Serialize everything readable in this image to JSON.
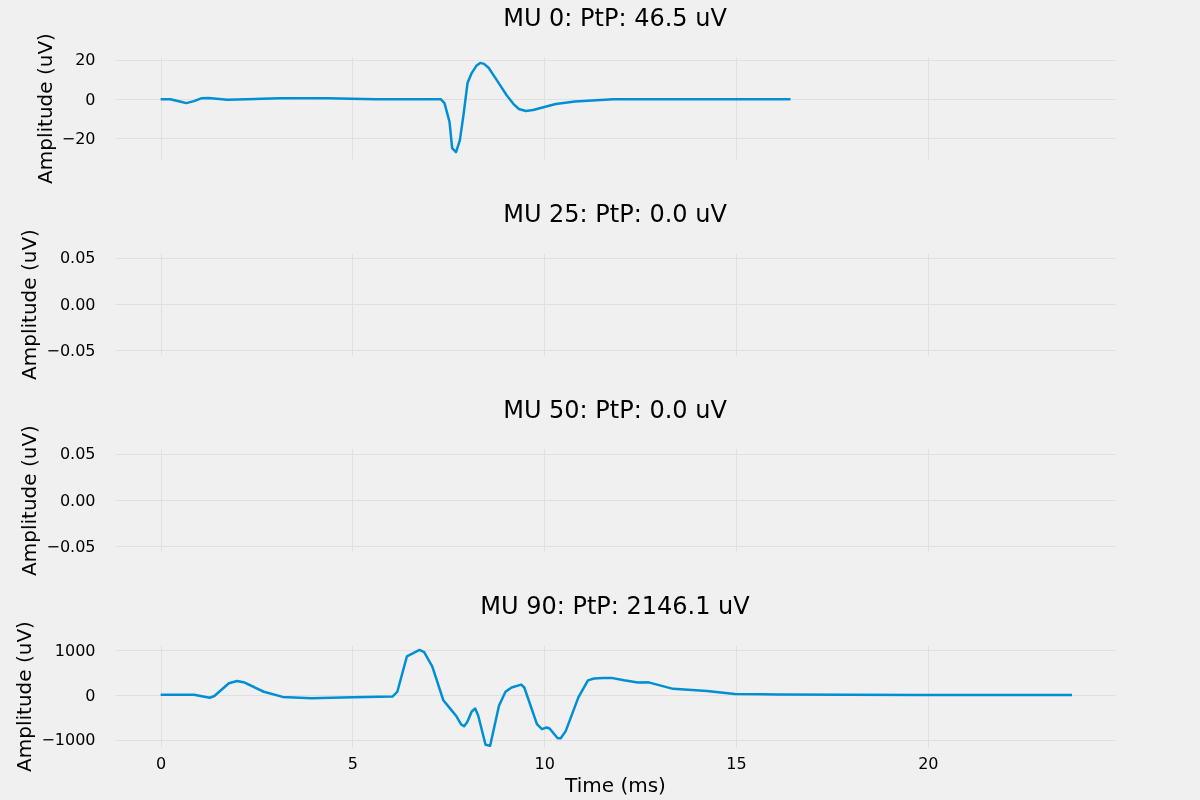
{
  "chart_data": [
    {
      "type": "line",
      "title": "MU 0: PtP: 46.5 uV",
      "ylabel": "Amplitude (uV)",
      "xlim": [
        -1.19,
        24.88
      ],
      "xticks": [
        0,
        5,
        10,
        15,
        20
      ],
      "ylim": [
        -30.5,
        21.5
      ],
      "yticks": [
        {
          "value": -20,
          "label": "−20"
        },
        0,
        20
      ],
      "grid": true,
      "tick_labels": "y",
      "series": [
        {
          "color": "#008fd5",
          "x": [
            0,
            0.25,
            0.5,
            0.67,
            0.87,
            1.07,
            1.24,
            1.74,
            3.1,
            4.35,
            5.6,
            7.3,
            7.4,
            7.53,
            7.6,
            7.7,
            7.8,
            7.9,
            8.0,
            8.1,
            8.23,
            8.33,
            8.43,
            8.55,
            8.72,
            8.84,
            9.02,
            9.2,
            9.34,
            9.52,
            9.71,
            10.3,
            10.8,
            11.8,
            16.42
          ],
          "values": [
            0,
            0,
            -1.2,
            -2,
            -1,
            0.5,
            0.6,
            -0.3,
            0.5,
            0.5,
            0,
            0,
            -2,
            -11.5,
            -25,
            -27,
            -21,
            -7.4,
            8.2,
            13,
            17,
            18.5,
            18,
            16,
            11,
            7.4,
            2,
            -2.5,
            -5,
            -6,
            -5.5,
            -2.5,
            -1.2,
            0,
            0
          ]
        }
      ]
    },
    {
      "type": "line",
      "title": "MU 25: PtP: 0.0 uV",
      "ylabel": "Amplitude (uV)",
      "xlim": [
        -1.19,
        24.88
      ],
      "xticks": [
        0,
        5,
        10,
        15,
        20
      ],
      "ylim": [
        -0.055,
        0.055
      ],
      "yticks": [
        {
          "value": -0.05,
          "label": "−0.05"
        },
        {
          "value": 0,
          "label": "0.00"
        },
        0.05
      ],
      "grid": true,
      "tick_labels": "y"
    },
    {
      "type": "line",
      "title": "MU 50: PtP: 0.0 uV",
      "ylabel": "Amplitude (uV)",
      "xlim": [
        -1.19,
        24.88
      ],
      "xticks": [
        0,
        5,
        10,
        15,
        20
      ],
      "ylim": [
        -0.055,
        0.055
      ],
      "yticks": [
        {
          "value": -0.05,
          "label": "−0.05"
        },
        {
          "value": 0,
          "label": "0.00"
        },
        0.05
      ],
      "grid": true,
      "tick_labels": "y"
    },
    {
      "type": "line",
      "title": "MU 90: PtP: 2146.1 uV",
      "xlabel": "Time (ms)",
      "ylabel": "Amplitude (uV)",
      "xlim": [
        -1.19,
        24.88
      ],
      "xticks": [
        0,
        5,
        10,
        15,
        20
      ],
      "ylim": [
        -1160,
        1120
      ],
      "yticks": [
        {
          "value": -1000,
          "label": "−1000"
        },
        0,
        1000
      ],
      "grid": true,
      "series": [
        {
          "color": "#008fd5",
          "x": [
            0,
            0.87,
            1.28,
            1.4,
            1.78,
            1.99,
            2.19,
            2.69,
            3.18,
            3.93,
            5.01,
            6.05,
            6.17,
            6.42,
            6.75,
            6.87,
            7.08,
            7.37,
            7.58,
            7.7,
            7.83,
            7.91,
            7.99,
            8.11,
            8.2,
            8.28,
            8.47,
            8.59,
            8.82,
            8.99,
            9.15,
            9.4,
            9.48,
            9.81,
            9.94,
            10.06,
            10.14,
            10.35,
            10.43,
            10.56,
            10.89,
            11.14,
            11.3,
            11.53,
            11.75,
            12.08,
            12.44,
            12.72,
            13.36,
            14.24,
            14.97,
            16.07,
            19.75,
            23.76
          ],
          "values": [
            10,
            10,
            -60,
            -20,
            265,
            315,
            280,
            75,
            -40,
            -70,
            -50,
            -30,
            75,
            865,
            1010,
            960,
            640,
            -115,
            -335,
            -460,
            -650,
            -695,
            -605,
            -365,
            -300,
            -460,
            -1110,
            -1130,
            -240,
            75,
            170,
            235,
            170,
            -650,
            -760,
            -725,
            -745,
            -965,
            -965,
            -805,
            -50,
            330,
            370,
            385,
            385,
            330,
            280,
            285,
            140,
            90,
            25,
            15,
            5,
            5
          ]
        }
      ]
    }
  ]
}
